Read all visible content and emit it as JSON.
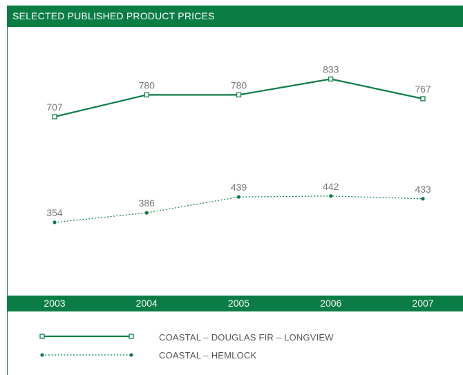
{
  "title": "SELECTED PUBLISHED PRODUCT PRICES",
  "colors": {
    "brand_green": "#0a7d45",
    "label_gray": "#777777"
  },
  "chart_data": {
    "type": "line",
    "title": "SELECTED PUBLISHED PRODUCT PRICES",
    "x": [
      "2003",
      "2004",
      "2005",
      "2006",
      "2007"
    ],
    "series": [
      {
        "name": "COASTAL – DOUGLAS FIR – LONGVIEW",
        "values": [
          707,
          780,
          780,
          833,
          767
        ],
        "line": "solid",
        "marker": "open-square"
      },
      {
        "name": "COASTAL – HEMLOCK",
        "values": [
          354,
          386,
          439,
          442,
          433
        ],
        "line": "dotted",
        "marker": "filled-circle"
      }
    ],
    "grid": false,
    "legend_position": "bottom"
  }
}
